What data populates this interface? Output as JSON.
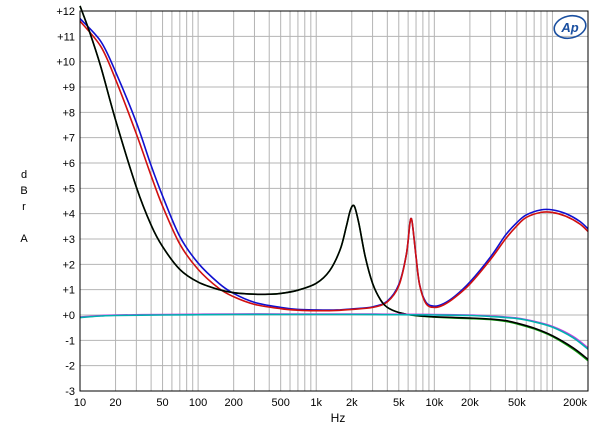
{
  "chart_data": {
    "type": "line",
    "title": "",
    "xlabel": "Hz",
    "ylabel": [
      "d",
      "B",
      "r",
      "",
      "A"
    ],
    "xscale": "log",
    "xlim": [
      10,
      200000
    ],
    "ylim": [
      -3,
      12
    ],
    "grid": true,
    "legend": "none",
    "logo": "Ap",
    "x_tick_labels": [
      {
        "value": 10,
        "label": "10"
      },
      {
        "value": 20,
        "label": "20"
      },
      {
        "value": 50,
        "label": "50"
      },
      {
        "value": 100,
        "label": "100"
      },
      {
        "value": 200,
        "label": "200"
      },
      {
        "value": 500,
        "label": "500"
      },
      {
        "value": 1000,
        "label": "1k"
      },
      {
        "value": 2000,
        "label": "2k"
      },
      {
        "value": 5000,
        "label": "5k"
      },
      {
        "value": 10000,
        "label": "10k"
      },
      {
        "value": 20000,
        "label": "20k"
      },
      {
        "value": 50000,
        "label": "50k"
      },
      {
        "value": 200000,
        "label": "200k"
      }
    ],
    "y_tick_labels": [
      {
        "value": 12,
        "label": "+12"
      },
      {
        "value": 11,
        "label": "+11"
      },
      {
        "value": 10,
        "label": "+10"
      },
      {
        "value": 9,
        "label": "+9"
      },
      {
        "value": 8,
        "label": "+8"
      },
      {
        "value": 7,
        "label": "+7"
      },
      {
        "value": 6,
        "label": "+6"
      },
      {
        "value": 5,
        "label": "+5"
      },
      {
        "value": 4,
        "label": "+4"
      },
      {
        "value": 3,
        "label": "+3"
      },
      {
        "value": 2,
        "label": "+2"
      },
      {
        "value": 1,
        "label": "+1"
      },
      {
        "value": 0,
        "label": "+0"
      },
      {
        "value": -1,
        "label": "-1"
      },
      {
        "value": -2,
        "label": "-2"
      },
      {
        "value": -3,
        "label": "-3"
      }
    ],
    "series": [
      {
        "color": "#1010d0",
        "points": [
          [
            10,
            11.7
          ],
          [
            15,
            10.8
          ],
          [
            20,
            9.6
          ],
          [
            30,
            7.6
          ],
          [
            40,
            5.9
          ],
          [
            50,
            4.7
          ],
          [
            70,
            3.1
          ],
          [
            100,
            2.05
          ],
          [
            150,
            1.25
          ],
          [
            200,
            0.85
          ],
          [
            300,
            0.5
          ],
          [
            500,
            0.3
          ],
          [
            700,
            0.22
          ],
          [
            1000,
            0.2
          ],
          [
            1500,
            0.2
          ],
          [
            2000,
            0.24
          ],
          [
            3000,
            0.32
          ],
          [
            4000,
            0.55
          ],
          [
            5000,
            1.2
          ],
          [
            5800,
            2.4
          ],
          [
            6200,
            3.6
          ],
          [
            6400,
            3.8
          ],
          [
            6600,
            3.4
          ],
          [
            7000,
            2.3
          ],
          [
            7500,
            1.2
          ],
          [
            8500,
            0.5
          ],
          [
            10000,
            0.35
          ],
          [
            12000,
            0.45
          ],
          [
            15000,
            0.75
          ],
          [
            20000,
            1.3
          ],
          [
            30000,
            2.3
          ],
          [
            40000,
            3.15
          ],
          [
            50000,
            3.65
          ],
          [
            60000,
            3.95
          ],
          [
            80000,
            4.15
          ],
          [
            100000,
            4.15
          ],
          [
            130000,
            4.0
          ],
          [
            170000,
            3.7
          ],
          [
            200000,
            3.4
          ]
        ]
      },
      {
        "color": "#d01010",
        "points": [
          [
            10,
            11.6
          ],
          [
            15,
            10.6
          ],
          [
            20,
            9.3
          ],
          [
            30,
            7.15
          ],
          [
            40,
            5.5
          ],
          [
            50,
            4.3
          ],
          [
            70,
            2.8
          ],
          [
            100,
            1.8
          ],
          [
            150,
            1.05
          ],
          [
            200,
            0.72
          ],
          [
            300,
            0.42
          ],
          [
            500,
            0.25
          ],
          [
            700,
            0.19
          ],
          [
            1000,
            0.17
          ],
          [
            1500,
            0.18
          ],
          [
            2000,
            0.22
          ],
          [
            3000,
            0.3
          ],
          [
            4000,
            0.52
          ],
          [
            5000,
            1.15
          ],
          [
            5800,
            2.4
          ],
          [
            6200,
            3.6
          ],
          [
            6400,
            3.8
          ],
          [
            6600,
            3.4
          ],
          [
            7000,
            2.3
          ],
          [
            7500,
            1.2
          ],
          [
            8500,
            0.45
          ],
          [
            10000,
            0.3
          ],
          [
            12000,
            0.4
          ],
          [
            15000,
            0.7
          ],
          [
            20000,
            1.22
          ],
          [
            30000,
            2.2
          ],
          [
            40000,
            3.0
          ],
          [
            50000,
            3.52
          ],
          [
            60000,
            3.85
          ],
          [
            80000,
            4.05
          ],
          [
            100000,
            4.05
          ],
          [
            130000,
            3.9
          ],
          [
            170000,
            3.6
          ],
          [
            200000,
            3.3
          ]
        ]
      },
      {
        "color": "#10a010",
        "points": [
          [
            10,
            12.2
          ],
          [
            12,
            11.2
          ],
          [
            15,
            9.8
          ],
          [
            20,
            7.7
          ],
          [
            30,
            5.05
          ],
          [
            40,
            3.55
          ],
          [
            50,
            2.7
          ],
          [
            70,
            1.8
          ],
          [
            100,
            1.3
          ],
          [
            150,
            1.0
          ],
          [
            200,
            0.88
          ],
          [
            300,
            0.82
          ],
          [
            400,
            0.82
          ],
          [
            500,
            0.85
          ],
          [
            700,
            0.98
          ],
          [
            1000,
            1.25
          ],
          [
            1300,
            1.75
          ],
          [
            1600,
            2.6
          ],
          [
            1800,
            3.5
          ],
          [
            1950,
            4.15
          ],
          [
            2100,
            4.3
          ],
          [
            2300,
            3.6
          ],
          [
            2600,
            2.3
          ],
          [
            3000,
            1.25
          ],
          [
            3500,
            0.6
          ],
          [
            4000,
            0.3
          ],
          [
            5000,
            0.1
          ],
          [
            7000,
            -0.03
          ],
          [
            10000,
            -0.08
          ],
          [
            15000,
            -0.12
          ],
          [
            20000,
            -0.14
          ],
          [
            30000,
            -0.18
          ],
          [
            40000,
            -0.25
          ],
          [
            50000,
            -0.35
          ],
          [
            70000,
            -0.55
          ],
          [
            100000,
            -0.85
          ],
          [
            150000,
            -1.35
          ],
          [
            200000,
            -1.8
          ]
        ]
      },
      {
        "color": "#000000",
        "points": [
          [
            10,
            12.2
          ],
          [
            12,
            11.2
          ],
          [
            15,
            9.8
          ],
          [
            20,
            7.7
          ],
          [
            30,
            5.05
          ],
          [
            40,
            3.55
          ],
          [
            50,
            2.7
          ],
          [
            70,
            1.8
          ],
          [
            100,
            1.3
          ],
          [
            150,
            1.0
          ],
          [
            200,
            0.88
          ],
          [
            300,
            0.82
          ],
          [
            400,
            0.82
          ],
          [
            500,
            0.85
          ],
          [
            700,
            0.98
          ],
          [
            1000,
            1.25
          ],
          [
            1300,
            1.75
          ],
          [
            1600,
            2.6
          ],
          [
            1800,
            3.5
          ],
          [
            1950,
            4.15
          ],
          [
            2100,
            4.3
          ],
          [
            2300,
            3.6
          ],
          [
            2600,
            2.3
          ],
          [
            3000,
            1.25
          ],
          [
            3500,
            0.6
          ],
          [
            4000,
            0.3
          ],
          [
            5000,
            0.1
          ],
          [
            7000,
            -0.02
          ],
          [
            10000,
            -0.07
          ],
          [
            15000,
            -0.1
          ],
          [
            20000,
            -0.12
          ],
          [
            30000,
            -0.16
          ],
          [
            40000,
            -0.22
          ],
          [
            50000,
            -0.32
          ],
          [
            70000,
            -0.52
          ],
          [
            100000,
            -0.82
          ],
          [
            150000,
            -1.3
          ],
          [
            200000,
            -1.75
          ]
        ]
      },
      {
        "color": "#c040e0",
        "points": [
          [
            10,
            -0.08
          ],
          [
            15,
            -0.02
          ],
          [
            20,
            0.0
          ],
          [
            50,
            0.02
          ],
          [
            100,
            0.03
          ],
          [
            200,
            0.04
          ],
          [
            500,
            0.04
          ],
          [
            1000,
            0.04
          ],
          [
            2000,
            0.04
          ],
          [
            5000,
            0.03
          ],
          [
            10000,
            0.02
          ],
          [
            20000,
            0.0
          ],
          [
            30000,
            -0.04
          ],
          [
            50000,
            -0.12
          ],
          [
            70000,
            -0.25
          ],
          [
            100000,
            -0.45
          ],
          [
            150000,
            -0.85
          ],
          [
            200000,
            -1.3
          ]
        ]
      },
      {
        "color": "#00b0b0",
        "points": [
          [
            10,
            -0.1
          ],
          [
            15,
            -0.04
          ],
          [
            20,
            -0.02
          ],
          [
            50,
            0.0
          ],
          [
            100,
            0.01
          ],
          [
            200,
            0.02
          ],
          [
            500,
            0.02
          ],
          [
            1000,
            0.02
          ],
          [
            2000,
            0.02
          ],
          [
            5000,
            0.01
          ],
          [
            10000,
            0.0
          ],
          [
            20000,
            -0.02
          ],
          [
            30000,
            -0.06
          ],
          [
            50000,
            -0.14
          ],
          [
            70000,
            -0.27
          ],
          [
            100000,
            -0.48
          ],
          [
            150000,
            -0.9
          ],
          [
            200000,
            -1.35
          ]
        ]
      }
    ]
  }
}
